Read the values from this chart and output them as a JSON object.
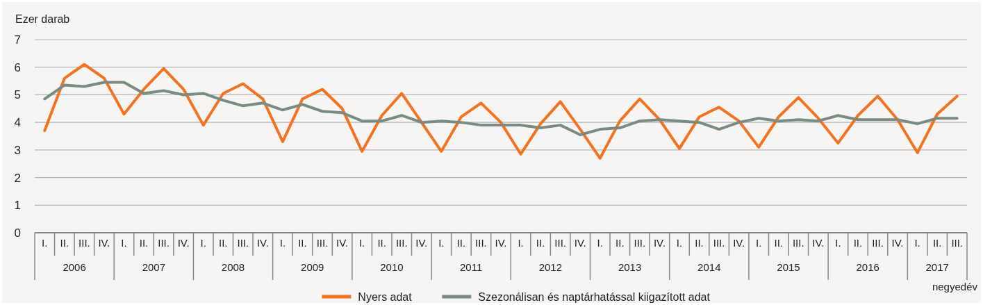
{
  "chart_data": {
    "type": "line",
    "ylabel": "Ezer darab",
    "xlabel": "negyedév",
    "categories": [
      "I.",
      "II.",
      "III.",
      "IV.",
      "I.",
      "II.",
      "III.",
      "IV.",
      "I.",
      "II.",
      "III.",
      "IV.",
      "I.",
      "II.",
      "III.",
      "IV.",
      "I.",
      "II.",
      "III.",
      "IV.",
      "I.",
      "II.",
      "III.",
      "IV.",
      "I.",
      "II.",
      "III.",
      "IV.",
      "I.",
      "II.",
      "III.",
      "IV.",
      "I.",
      "II.",
      "III.",
      "IV.",
      "I.",
      "II.",
      "III.",
      "IV.",
      "I.",
      "II.",
      "III.",
      "IV.",
      "I.",
      "II.",
      "III."
    ],
    "annotations": [
      "2006",
      "2007",
      "2008",
      "2009",
      "2010",
      "2011",
      "2012",
      "2013",
      "2014",
      "2015",
      "2016",
      "2017"
    ],
    "series": [
      {
        "name": "Nyers adat",
        "color": "#f47321",
        "values": [
          3.7,
          5.6,
          6.1,
          5.6,
          4.3,
          5.2,
          5.95,
          5.2,
          3.9,
          5.05,
          5.4,
          4.85,
          3.3,
          4.85,
          5.2,
          4.5,
          2.95,
          4.25,
          5.05,
          4.0,
          2.95,
          4.2,
          4.7,
          4.0,
          2.85,
          3.95,
          4.75,
          3.75,
          2.7,
          4.05,
          4.85,
          4.1,
          3.05,
          4.2,
          4.55,
          4.05,
          3.1,
          4.2,
          4.9,
          4.15,
          3.25,
          4.25,
          4.95,
          4.1,
          2.9,
          4.3,
          4.95
        ]
      },
      {
        "name": "Szezonálisan és naptárhatással kiigazított adat",
        "color": "#7a8c82",
        "values": [
          4.85,
          5.35,
          5.3,
          5.45,
          5.45,
          5.05,
          5.15,
          5.0,
          5.05,
          4.8,
          4.6,
          4.7,
          4.45,
          4.65,
          4.4,
          4.35,
          4.05,
          4.05,
          4.25,
          4.0,
          4.05,
          4.0,
          3.9,
          3.9,
          3.9,
          3.8,
          3.9,
          3.55,
          3.75,
          3.8,
          4.05,
          4.1,
          4.05,
          4.0,
          3.75,
          4.0,
          4.15,
          4.05,
          4.1,
          4.05,
          4.25,
          4.1,
          4.1,
          4.1,
          3.95,
          4.15,
          4.15
        ]
      }
    ],
    "ylim": [
      0,
      7
    ],
    "yticks": [
      0,
      1,
      2,
      3,
      4,
      5,
      6,
      7
    ],
    "grid": "y",
    "legend": "bottom",
    "marker": "none",
    "line_style": "solid"
  }
}
